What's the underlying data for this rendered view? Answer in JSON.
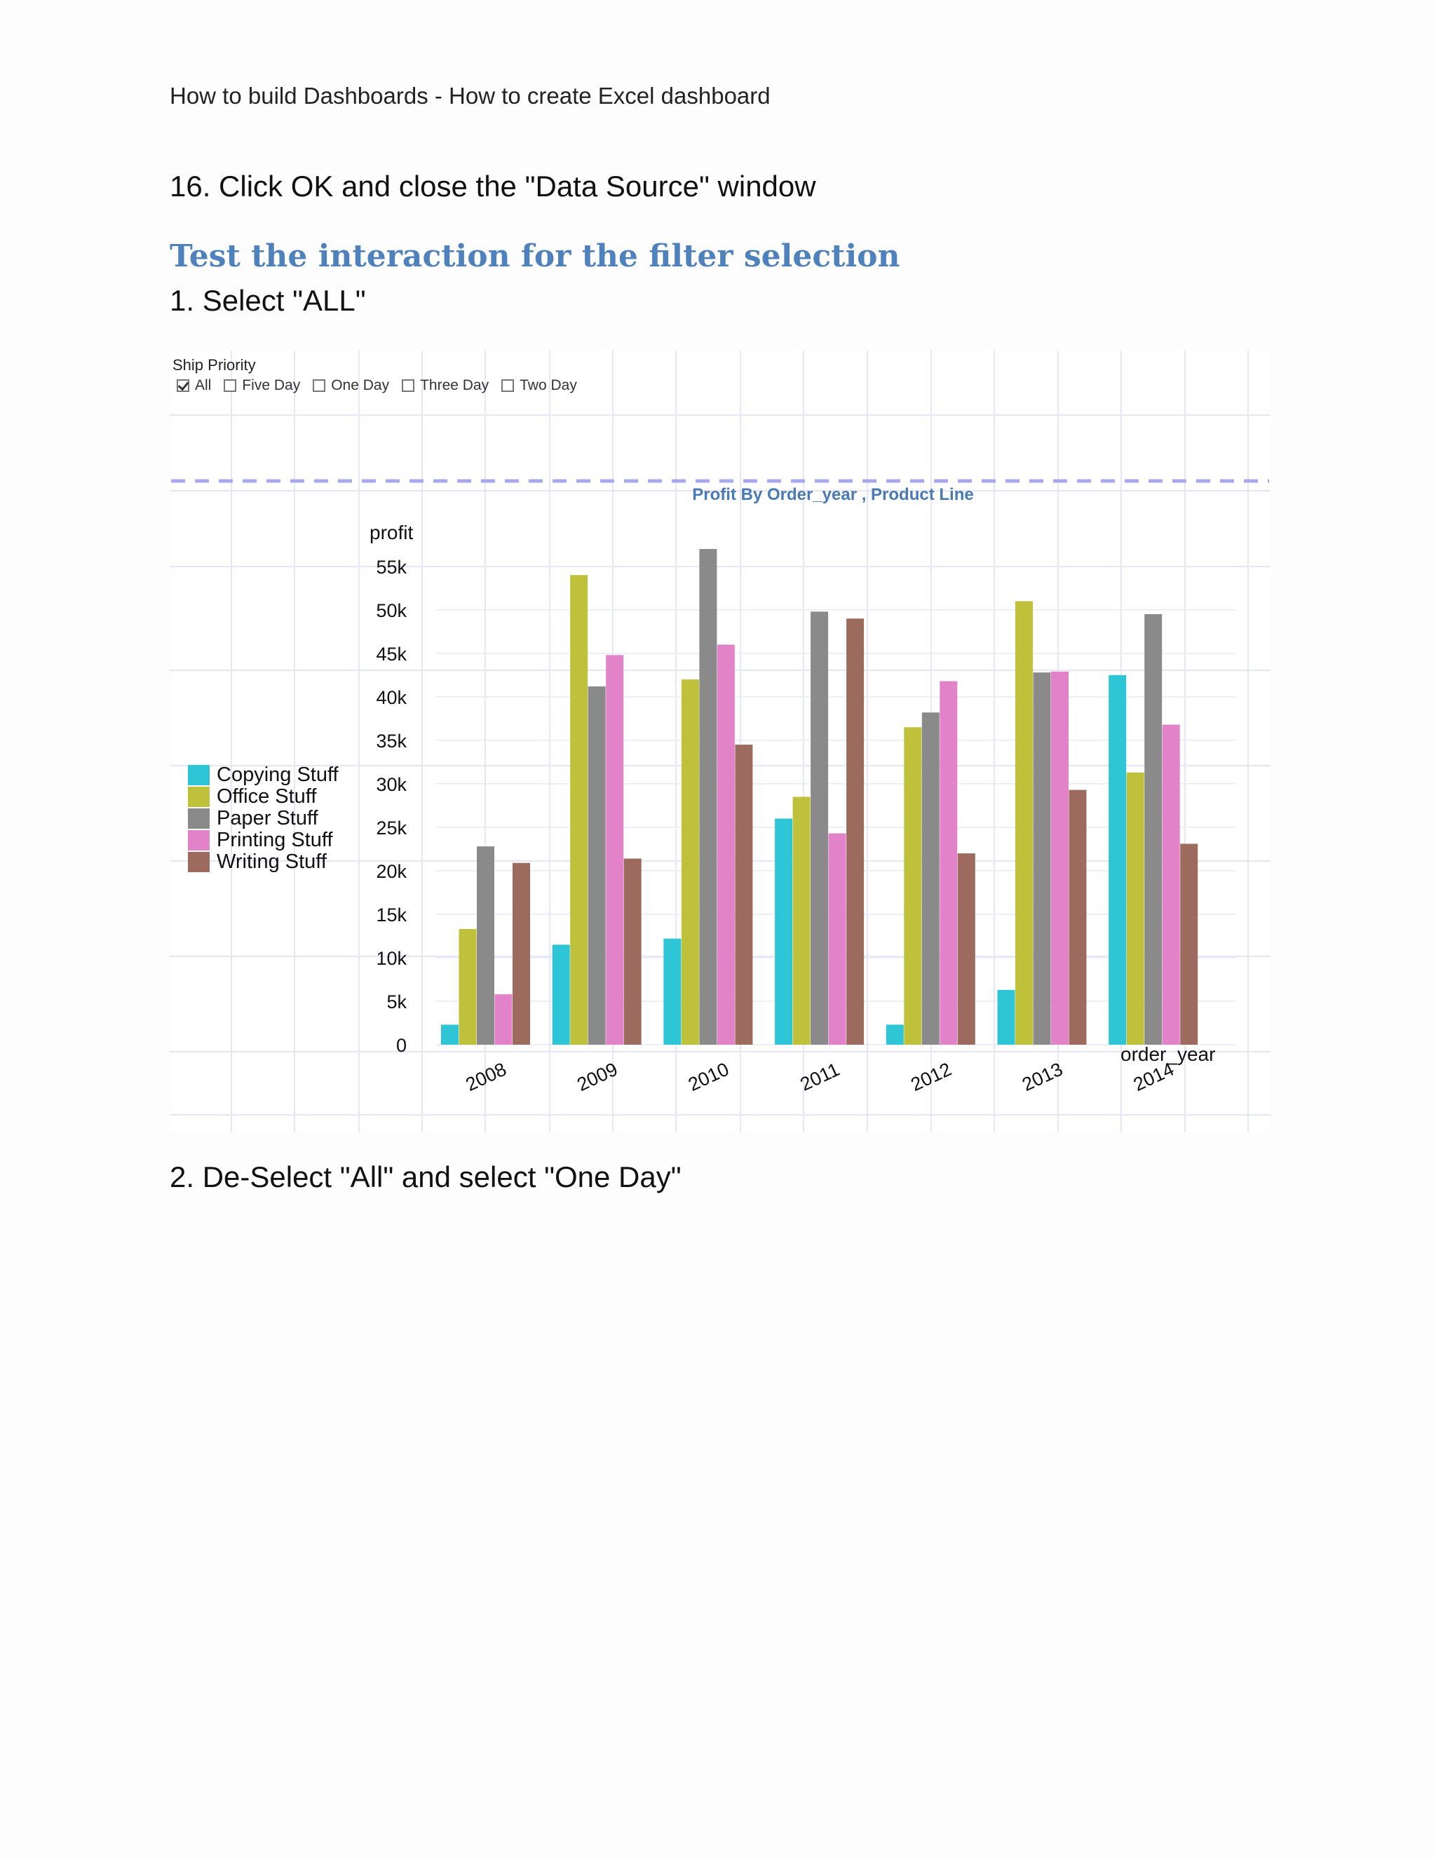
{
  "header": {
    "text": "How to build Dashboards - How to create Excel dashboard"
  },
  "steps": {
    "step16": "16. Click OK and close the \"Data Source\" window",
    "section_title": "Test the interaction for the filter selection",
    "step1": "1. Select \"ALL\"",
    "step2": "2. De-Select \"All\" and select \"One Day\""
  },
  "filter": {
    "label": "Ship Priority",
    "options": [
      {
        "label": "All",
        "checked": true
      },
      {
        "label": "Five Day",
        "checked": false
      },
      {
        "label": "One Day",
        "checked": false
      },
      {
        "label": "Three Day",
        "checked": false
      },
      {
        "label": "Two Day",
        "checked": false
      }
    ]
  },
  "colors": {
    "section_title": "#4f81bd",
    "chart_title": "#4a7ab5",
    "dashed_line": "#a8a8ee",
    "grid": "#e6e6f6"
  },
  "chart_data": {
    "type": "bar",
    "title": "Profit By Order_year , Product Line",
    "xlabel": "order_year",
    "ylabel": "profit",
    "ylim": [
      0,
      57000
    ],
    "yticks": [
      {
        "value": 0,
        "label": "0"
      },
      {
        "value": 5000,
        "label": "5k"
      },
      {
        "value": 10000,
        "label": "10k"
      },
      {
        "value": 15000,
        "label": "15k"
      },
      {
        "value": 20000,
        "label": "20k"
      },
      {
        "value": 25000,
        "label": "25k"
      },
      {
        "value": 30000,
        "label": "30k"
      },
      {
        "value": 35000,
        "label": "35k"
      },
      {
        "value": 40000,
        "label": "40k"
      },
      {
        "value": 45000,
        "label": "45k"
      },
      {
        "value": 50000,
        "label": "50k"
      },
      {
        "value": 55000,
        "label": "55k"
      }
    ],
    "categories": [
      "2008",
      "2009",
      "2010",
      "2011",
      "2012",
      "2013",
      "2014"
    ],
    "series": [
      {
        "name": "Copying Stuff",
        "color": "#2ec5d6",
        "values": [
          2300,
          11500,
          12200,
          26000,
          2300,
          6300,
          42500
        ]
      },
      {
        "name": "Office Stuff",
        "color": "#bfc13a",
        "values": [
          13300,
          54000,
          42000,
          28500,
          36500,
          51000,
          31300
        ]
      },
      {
        "name": "Paper Stuff",
        "color": "#8a8a8a",
        "values": [
          22800,
          41200,
          57000,
          49800,
          38200,
          42800,
          49500
        ]
      },
      {
        "name": "Printing Stuff",
        "color": "#e282c9",
        "values": [
          5800,
          44800,
          46000,
          24300,
          41800,
          42900,
          36800
        ]
      },
      {
        "name": "Writing Stuff",
        "color": "#9d6a5e",
        "values": [
          20900,
          21400,
          34500,
          49000,
          22000,
          29300,
          23100
        ]
      }
    ],
    "legend_position": "left"
  }
}
